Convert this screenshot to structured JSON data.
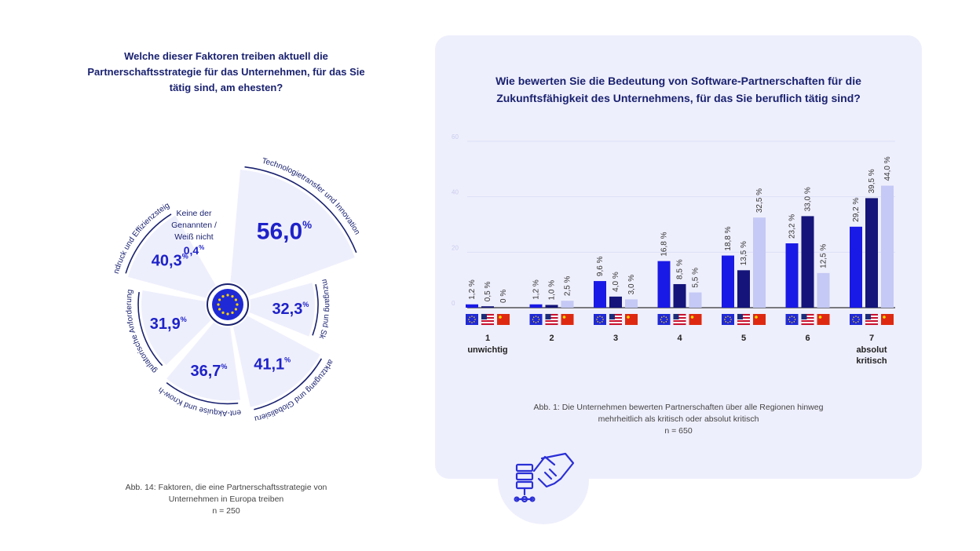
{
  "left": {
    "title": "Welche dieser Faktoren treiben aktuell die Partnerschaftsstrategie für das Unternehmen, für das Sie tätig sind, am ehesten?",
    "caption_line1": "Abb. 14: Faktoren, die eine Partnerschaftsstrategie von",
    "caption_line2": "Unternehmen in Europa treiben",
    "n": "n = 250"
  },
  "right": {
    "title_line1": "Wie bewerten Sie die Bedeutung von Software-Partnerschaften für die",
    "title_line2": "Zukunftsfähigkeit des Unternehmens, für das Sie beruflich tätig sind?",
    "caption_line1": "Abb. 1: Die Unternehmen bewerten Partnerschaften über alle Regionen hinweg",
    "caption_line2": "mehrheitlich als kritisch oder absolut kritisch",
    "n": "n = 650"
  },
  "colors": {
    "eu": "#1a1ae6",
    "us": "#14147a",
    "cn": "#c5c9f5",
    "text": "#1a2270",
    "sector_fill": "#eeeffc"
  },
  "chart_data": [
    {
      "type": "polar-area",
      "unit": "%",
      "decimal": ",",
      "segments": [
        {
          "label": "Technologietransfer und Innovation",
          "value": 56.0
        },
        {
          "label": "Plattformzugang und Skalierung",
          "value": 32.3
        },
        {
          "label": "Marktzugang und Globalisierung",
          "value": 41.1
        },
        {
          "label": "Talent-Akquise und Know-how",
          "value": 36.7
        },
        {
          "label": "Regulatorische Anforderungen",
          "value": 31.9
        },
        {
          "label": "Kostendruck und Effizienzsteigerung",
          "value": 40.3
        },
        {
          "label": "Keine der Genannten / Weiß nicht",
          "value": 0.4
        }
      ],
      "center_icon": "eu-flag-icon"
    },
    {
      "type": "bar",
      "categories": [
        "1",
        "2",
        "3",
        "4",
        "5",
        "6",
        "7"
      ],
      "category_sublabels": [
        "unwichtig",
        "",
        "",
        "",
        "",
        "",
        "absolut kritisch"
      ],
      "series": [
        {
          "icon": "eu-flag-icon",
          "values": [
            1.2,
            1.2,
            9.6,
            16.8,
            18.8,
            23.2,
            29.2
          ]
        },
        {
          "icon": "us-flag-icon",
          "values": [
            0.5,
            1.0,
            4.0,
            8.5,
            13.5,
            33.0,
            39.5
          ]
        },
        {
          "icon": "china-flag-icon",
          "values": [
            0,
            2.5,
            3.0,
            5.5,
            32.5,
            12.5,
            44.0
          ]
        }
      ],
      "yticks": [
        "0",
        "20",
        "40",
        "60"
      ],
      "ylim": [
        0,
        60
      ],
      "grid": true
    }
  ]
}
